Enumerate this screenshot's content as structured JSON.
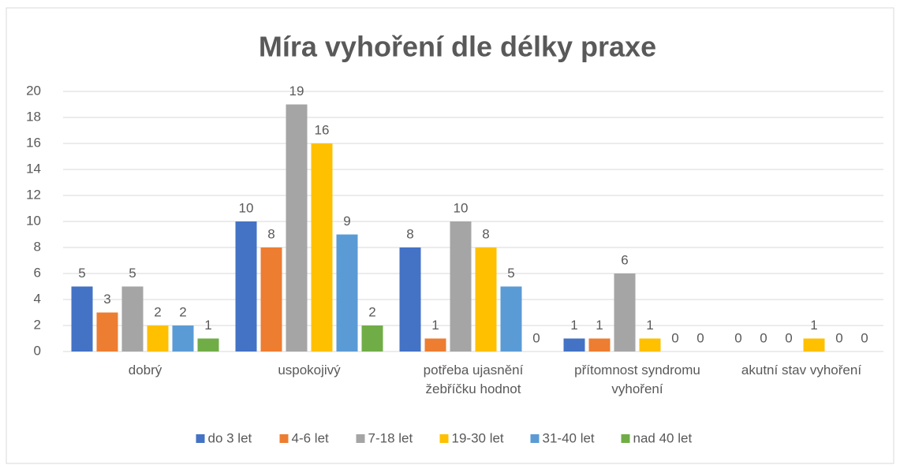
{
  "chart_data": {
    "type": "bar",
    "title": "Míra vyhoření dle délky praxe",
    "categories": [
      "dobrý",
      "uspokojivý",
      "potřeba ujasnění žebříčku hodnot",
      "přítomnost syndromu vyhoření",
      "akutní stav vyhoření"
    ],
    "series": [
      {
        "name": "do 3 let",
        "color": "#4472c4",
        "values": [
          5,
          10,
          8,
          1,
          0
        ]
      },
      {
        "name": "4-6 let",
        "color": "#ed7d31",
        "values": [
          3,
          8,
          1,
          1,
          0
        ]
      },
      {
        "name": "7-18 let",
        "color": "#a5a5a5",
        "values": [
          5,
          19,
          10,
          6,
          0
        ]
      },
      {
        "name": "19-30 let",
        "color": "#ffc000",
        "values": [
          2,
          16,
          8,
          1,
          1
        ]
      },
      {
        "name": "31-40 let",
        "color": "#5b9bd5",
        "values": [
          2,
          9,
          5,
          0,
          0
        ]
      },
      {
        "name": "nad 40 let",
        "color": "#70ad47",
        "values": [
          1,
          2,
          0,
          0,
          0
        ]
      }
    ],
    "ylim": [
      0,
      20
    ],
    "yticks": [
      0,
      2,
      4,
      6,
      8,
      10,
      12,
      14,
      16,
      18,
      20
    ],
    "grid": true,
    "legend": "bottom"
  }
}
